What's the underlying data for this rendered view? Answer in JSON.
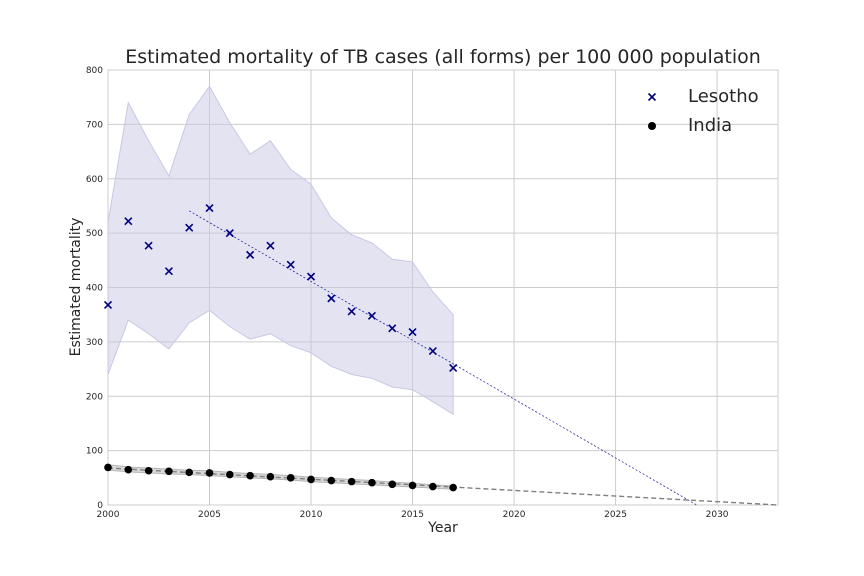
{
  "chart_data": {
    "type": "scatter",
    "title": "Estimated mortality of TB cases (all forms) per 100 000 population",
    "xlabel": "Year",
    "ylabel": "Estimated mortality",
    "xlim": [
      2000,
      2033
    ],
    "ylim": [
      0,
      800
    ],
    "xticks": [
      2000,
      2005,
      2010,
      2015,
      2020,
      2025,
      2030
    ],
    "yticks": [
      0,
      100,
      200,
      300,
      400,
      500,
      600,
      700,
      800
    ],
    "grid": true,
    "legend_position": "top-right",
    "series": [
      {
        "name": "Lesotho",
        "marker": "x",
        "color": "#000080",
        "band_color": "#c8c8e4",
        "x": [
          2000,
          2001,
          2002,
          2003,
          2004,
          2005,
          2006,
          2007,
          2008,
          2009,
          2010,
          2011,
          2012,
          2013,
          2014,
          2015,
          2016,
          2017
        ],
        "y": [
          368,
          522,
          477,
          430,
          510,
          546,
          500,
          460,
          477,
          442,
          420,
          380,
          356,
          348,
          325,
          318,
          283,
          252
        ],
        "lower": [
          240,
          340,
          315,
          287,
          335,
          358,
          328,
          305,
          315,
          293,
          280,
          255,
          240,
          233,
          217,
          212,
          190,
          167
        ],
        "upper": [
          520,
          740,
          670,
          605,
          718,
          770,
          703,
          645,
          670,
          617,
          590,
          528,
          497,
          482,
          452,
          447,
          392,
          350
        ],
        "trend": {
          "x": [
            2004,
            2029
          ],
          "y": [
            541,
            0
          ]
        }
      },
      {
        "name": "India",
        "marker": "o",
        "color": "#000000",
        "band_color": "#b4b4b4",
        "x": [
          2000,
          2001,
          2002,
          2003,
          2004,
          2005,
          2006,
          2007,
          2008,
          2009,
          2010,
          2011,
          2012,
          2013,
          2014,
          2015,
          2016,
          2017
        ],
        "y": [
          69,
          65,
          63,
          62,
          60,
          59,
          56,
          54,
          52,
          50,
          47,
          45,
          43,
          41,
          38,
          36,
          34,
          32
        ],
        "lower": [
          64,
          61,
          59,
          57,
          56,
          54,
          52,
          50,
          48,
          46,
          43,
          41,
          39,
          37,
          35,
          33,
          31,
          29
        ],
        "upper": [
          74,
          70,
          68,
          66,
          64,
          63,
          60,
          58,
          56,
          54,
          51,
          49,
          47,
          45,
          42,
          40,
          37,
          35
        ],
        "trend": {
          "x": [
            2000,
            2033
          ],
          "y": [
            68,
            0
          ]
        }
      }
    ]
  }
}
